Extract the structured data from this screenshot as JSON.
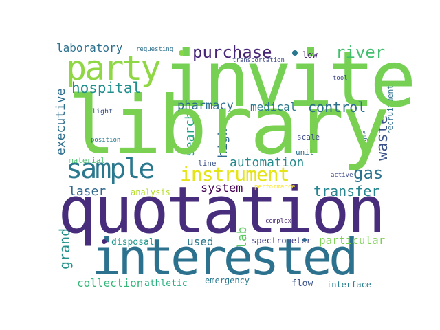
{
  "words": [
    {
      "text": "invite",
      "color": "#75d054"
    },
    {
      "text": "library",
      "color": "#7ad151"
    },
    {
      "text": "quotation",
      "color": "#472d7b"
    },
    {
      "text": "interested",
      "color": "#2c728e"
    },
    {
      "text": "party",
      "color": "#8fd744"
    },
    {
      "text": "sample",
      "color": "#2a788e"
    },
    {
      "text": "instrument",
      "color": "#e5e419"
    },
    {
      "text": "purchase",
      "color": "#482677"
    },
    {
      "text": "river",
      "color": "#44bf70"
    },
    {
      "text": "hospital",
      "color": "#218f8d"
    },
    {
      "text": "laboratory",
      "color": "#2d708e"
    },
    {
      "text": "pharmacy",
      "color": "#2e6e8e"
    },
    {
      "text": "medical",
      "color": "#2a788e"
    },
    {
      "text": "control",
      "color": "#2d708e"
    },
    {
      "text": "waste",
      "color": "#3b528b"
    },
    {
      "text": "gas",
      "color": "#2c728e"
    },
    {
      "text": "automation",
      "color": "#238a8d"
    },
    {
      "text": "system",
      "color": "#440154"
    },
    {
      "text": "transfer",
      "color": "#25848e"
    },
    {
      "text": "laser",
      "color": "#31688e"
    },
    {
      "text": "analysis",
      "color": "#b5de2b"
    },
    {
      "text": "executive",
      "color": "#2e6e8e"
    },
    {
      "text": "search",
      "color": "#1fa187"
    },
    {
      "text": "high",
      "color": "#31688e"
    },
    {
      "text": "grand",
      "color": "#21918c"
    },
    {
      "text": "used",
      "color": "#2a788e"
    },
    {
      "text": "lab",
      "color": "#5ec962"
    },
    {
      "text": "particular",
      "color": "#7ad151"
    },
    {
      "text": "collection",
      "color": "#35b779"
    },
    {
      "text": "athletic",
      "color": "#2ab07f"
    },
    {
      "text": "emergency",
      "color": "#2a788e"
    },
    {
      "text": "flow",
      "color": "#3b528b"
    },
    {
      "text": "interface",
      "color": "#287d8e"
    },
    {
      "text": "disposal",
      "color": "#1f988b"
    },
    {
      "text": "spectrometer",
      "color": "#433e85"
    },
    {
      "text": "complex",
      "color": "#482878"
    },
    {
      "text": "performance",
      "color": "#fde725"
    },
    {
      "text": "active",
      "color": "#3e4a89"
    },
    {
      "text": "line",
      "color": "#3b528b"
    },
    {
      "text": "unit",
      "color": "#2d708e"
    },
    {
      "text": "scale",
      "color": "#3e4989"
    },
    {
      "text": "material",
      "color": "#48c16e"
    },
    {
      "text": "position",
      "color": "#2a788e"
    },
    {
      "text": "light",
      "color": "#3b528b"
    },
    {
      "text": "low",
      "color": "#482475"
    },
    {
      "text": "transportation",
      "color": "#3e4a89"
    },
    {
      "text": "requesting",
      "color": "#2d708e"
    },
    {
      "text": "tool",
      "color": "#3f4788"
    },
    {
      "text": "recruitment",
      "color": "#2e6e8e"
    },
    {
      "text": "single",
      "color": "#31688e"
    }
  ],
  "dots": [
    {
      "color": "#86d549"
    },
    {
      "color": "#2a788e"
    },
    {
      "color": "#482878"
    },
    {
      "color": "#31688e"
    }
  ]
}
